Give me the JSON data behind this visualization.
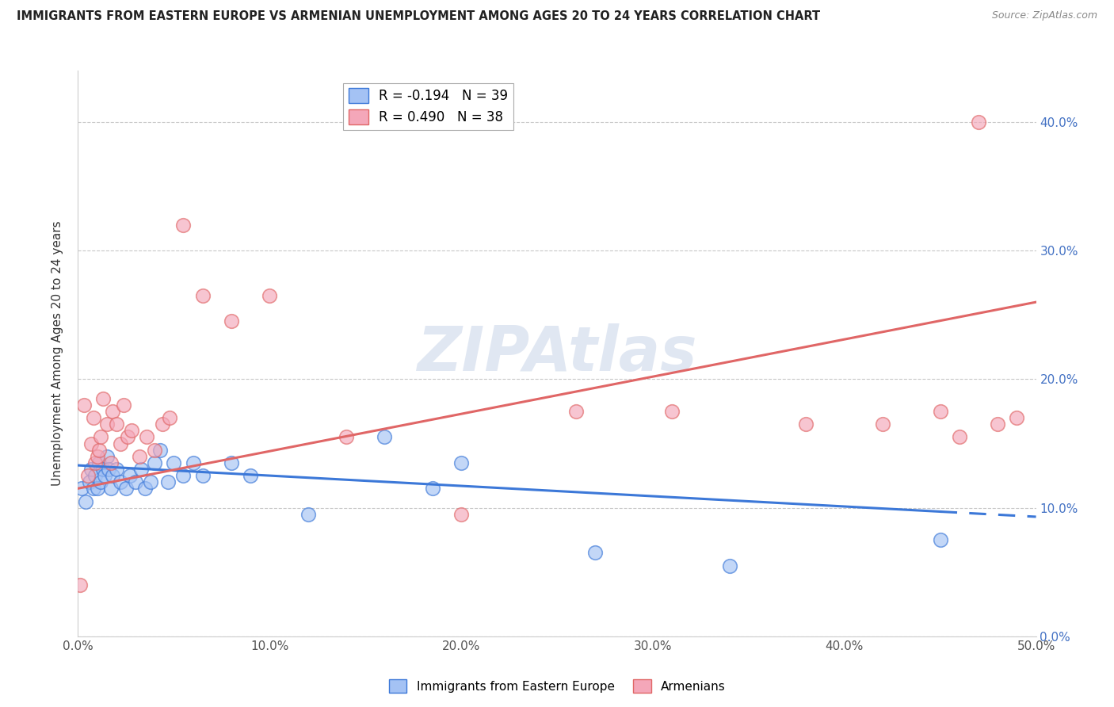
{
  "title": "IMMIGRANTS FROM EASTERN EUROPE VS ARMENIAN UNEMPLOYMENT AMONG AGES 20 TO 24 YEARS CORRELATION CHART",
  "source": "Source: ZipAtlas.com",
  "ylabel": "Unemployment Among Ages 20 to 24 years",
  "xlim": [
    0.0,
    0.5
  ],
  "ylim": [
    0.0,
    0.44
  ],
  "yticks": [
    0.0,
    0.1,
    0.2,
    0.3,
    0.4
  ],
  "xticks": [
    0.0,
    0.1,
    0.2,
    0.3,
    0.4,
    0.5
  ],
  "legend_r1": "R = -0.194",
  "legend_n1": "N = 39",
  "legend_r2": "R = 0.490",
  "legend_n2": "N = 38",
  "legend_label1": "Immigrants from Eastern Europe",
  "legend_label2": "Armenians",
  "blue_color": "#a4c2f4",
  "pink_color": "#f4a7b9",
  "blue_line_color": "#3c78d8",
  "pink_line_color": "#e06666",
  "watermark": "ZIPAtlas",
  "blue_scatter_x": [
    0.002,
    0.004,
    0.006,
    0.007,
    0.008,
    0.009,
    0.01,
    0.011,
    0.012,
    0.013,
    0.014,
    0.015,
    0.016,
    0.017,
    0.018,
    0.02,
    0.022,
    0.025,
    0.027,
    0.03,
    0.033,
    0.035,
    0.038,
    0.04,
    0.043,
    0.047,
    0.05,
    0.055,
    0.06,
    0.065,
    0.08,
    0.09,
    0.12,
    0.16,
    0.185,
    0.2,
    0.27,
    0.34,
    0.45
  ],
  "blue_scatter_y": [
    0.115,
    0.105,
    0.12,
    0.13,
    0.115,
    0.125,
    0.115,
    0.135,
    0.12,
    0.13,
    0.125,
    0.14,
    0.13,
    0.115,
    0.125,
    0.13,
    0.12,
    0.115,
    0.125,
    0.12,
    0.13,
    0.115,
    0.12,
    0.135,
    0.145,
    0.12,
    0.135,
    0.125,
    0.135,
    0.125,
    0.135,
    0.125,
    0.095,
    0.155,
    0.115,
    0.135,
    0.065,
    0.055,
    0.075
  ],
  "pink_scatter_x": [
    0.001,
    0.003,
    0.005,
    0.007,
    0.008,
    0.009,
    0.01,
    0.011,
    0.012,
    0.013,
    0.015,
    0.017,
    0.018,
    0.02,
    0.022,
    0.024,
    0.026,
    0.028,
    0.032,
    0.036,
    0.04,
    0.044,
    0.048,
    0.055,
    0.065,
    0.08,
    0.1,
    0.14,
    0.2,
    0.26,
    0.31,
    0.38,
    0.42,
    0.45,
    0.46,
    0.47,
    0.48,
    0.49
  ],
  "pink_scatter_y": [
    0.04,
    0.18,
    0.125,
    0.15,
    0.17,
    0.135,
    0.14,
    0.145,
    0.155,
    0.185,
    0.165,
    0.135,
    0.175,
    0.165,
    0.15,
    0.18,
    0.155,
    0.16,
    0.14,
    0.155,
    0.145,
    0.165,
    0.17,
    0.32,
    0.265,
    0.245,
    0.265,
    0.155,
    0.095,
    0.175,
    0.175,
    0.165,
    0.165,
    0.175,
    0.155,
    0.4,
    0.165,
    0.17
  ],
  "blue_trend_x": [
    0.0,
    0.5
  ],
  "blue_trend_y_start": 0.133,
  "blue_trend_y_end": 0.093,
  "pink_trend_x": [
    0.0,
    0.5
  ],
  "pink_trend_y_start": 0.115,
  "pink_trend_y_end": 0.26
}
